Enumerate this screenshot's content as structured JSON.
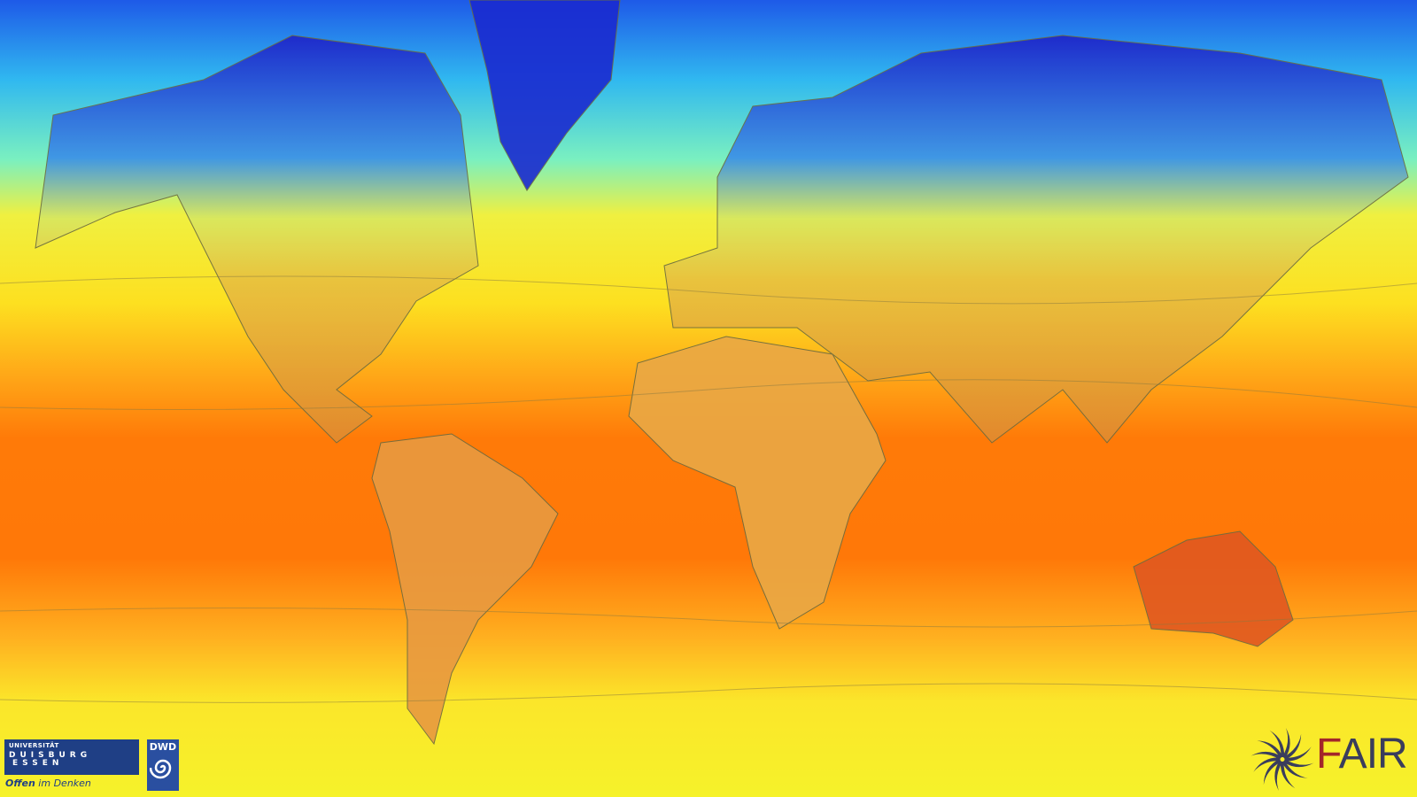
{
  "map": {
    "type": "global temperature map",
    "projection": "mercator",
    "colors": {
      "cold": "#1a2fd6",
      "cool": "#2ee6e6",
      "mild": "#f5f530",
      "warm": "#ff9a10",
      "hot": "#ff6a00"
    }
  },
  "logos": {
    "ude": {
      "line1": "UNIVERSITÄT",
      "line2": "DUISBURG",
      "line3": "ESSEN",
      "slogan_bold": "Offen",
      "slogan_rest": " im Denken"
    },
    "dwd": {
      "text": "DWD"
    },
    "fair": {
      "f": "F",
      "rest": "AIR"
    }
  }
}
